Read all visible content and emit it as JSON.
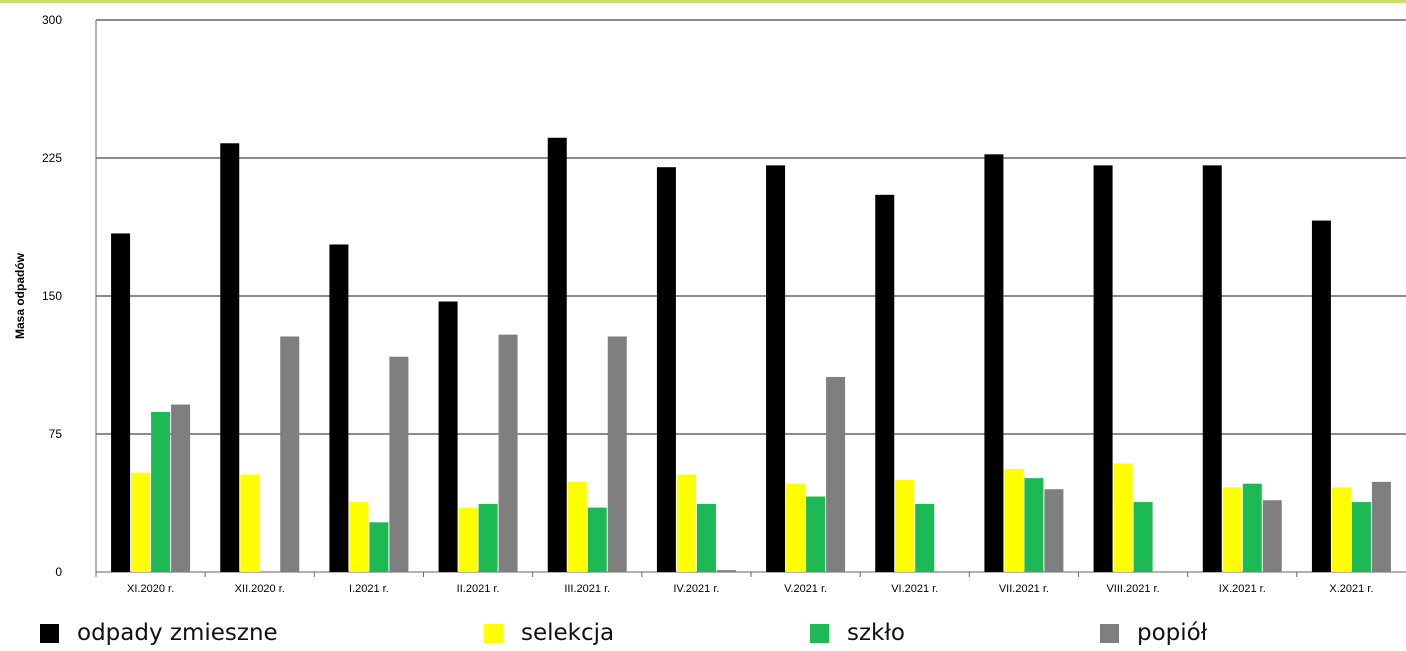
{
  "chart_data": {
    "type": "bar",
    "ylabel": "Masa odpadów",
    "ylim": [
      0,
      300
    ],
    "yticks": [
      0,
      75,
      150,
      225,
      300
    ],
    "grid": true,
    "legend_position": "bottom",
    "categories": [
      "XI.2020 r.",
      "XII.2020 r.",
      "I.2021 r.",
      "II.2021 r.",
      "III.2021 r.",
      "IV.2021 r.",
      "V.2021 r.",
      "VI.2021 r.",
      "VII.2021 r.",
      "VIII.2021 r.",
      "IX.2021 r.",
      "X.2021 r."
    ],
    "series": [
      {
        "name": "odpady zmieszne",
        "color": "#000000",
        "values": [
          184,
          233,
          178,
          147,
          236,
          220,
          221,
          205,
          227,
          221,
          221,
          191
        ]
      },
      {
        "name": "selekcja",
        "color": "#ffff00",
        "values": [
          54,
          53,
          38,
          35,
          49,
          53,
          48,
          50,
          56,
          59,
          46,
          46
        ]
      },
      {
        "name": "szkło",
        "color": "#1db954",
        "values": [
          87,
          0,
          27,
          37,
          35,
          37,
          41,
          37,
          51,
          38,
          48,
          38
        ]
      },
      {
        "name": "popiół",
        "color": "#7f7f7f",
        "values": [
          91,
          128,
          117,
          129,
          128,
          1,
          106,
          0,
          45,
          0,
          39,
          49
        ]
      }
    ]
  }
}
